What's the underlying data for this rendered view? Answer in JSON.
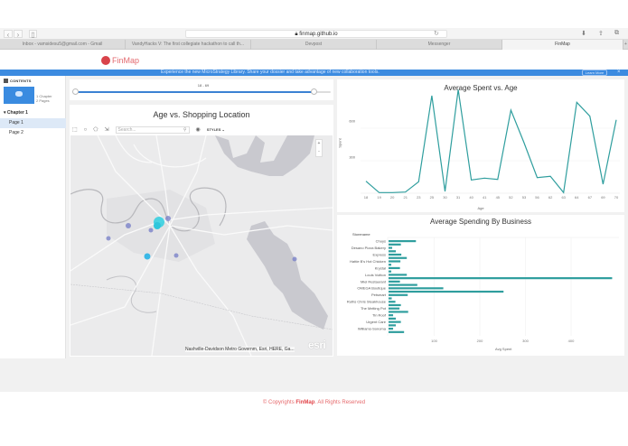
{
  "browser": {
    "url": "finmap.github.io",
    "tabs": [
      {
        "label": "Inbox - vamsidesu5@gmail.com - Gmail",
        "active": false
      },
      {
        "label": "VandyHacks V: The first collegiate hackathon to call th...",
        "active": false
      },
      {
        "label": "Devpost",
        "active": false
      },
      {
        "label": "Messenger",
        "active": false
      },
      {
        "label": "FinMap",
        "active": true
      }
    ],
    "new_tab": "+"
  },
  "site": {
    "logo": "FinMap",
    "brand_color": "#d9434a"
  },
  "banner": {
    "text": "Experience the new MicroStrategy Library. Share your dossier and take advantage of new collaboration tools.",
    "button": "Learn More",
    "close": "×"
  },
  "sidebar": {
    "header": "CONTENTS",
    "chapter_count": "1 Chapter",
    "page_count": "2 Pages",
    "chapter": "Chapter 1",
    "pages": [
      {
        "label": "Page 1",
        "selected": true
      },
      {
        "label": "Page 2",
        "selected": false
      }
    ]
  },
  "filter": {
    "label": "18 - 69",
    "min": 18,
    "max": 69
  },
  "map": {
    "title": "Age vs. Shopping Location",
    "search_placeholder": "Search...",
    "styles_label": "STYLES",
    "zoom_in": "+",
    "zoom_out": "-",
    "attribution": "Nashville-Davidson Metro Governm, Esri, HERE, Ga...",
    "esri_logo": "esri"
  },
  "chart_data": [
    {
      "type": "line",
      "title": "Average Spent vs. Age",
      "xlabel": "Age",
      "ylabel": "Spent",
      "categories": [
        "18",
        "19",
        "20",
        "21",
        "23",
        "25",
        "30",
        "31",
        "40",
        "41",
        "45",
        "52",
        "53",
        "56",
        "62",
        "63",
        "64",
        "67",
        "69",
        "70"
      ],
      "values": [
        100,
        5,
        5,
        10,
        95,
        810,
        15,
        860,
        110,
        125,
        115,
        690,
        420,
        130,
        140,
        5,
        755,
        640,
        75,
        610
      ],
      "yticks": [
        300,
        600
      ],
      "ylim": [
        0,
        870
      ],
      "color": "#2f9e9e",
      "grid": true
    },
    {
      "type": "bar",
      "orientation": "horizontal",
      "title": "Average Spending By Business",
      "xlabel": "Avg Spent",
      "ylabel": "Storename",
      "labels_shown": [
        "Chuys",
        "Desano Pizza Bakery",
        "Express",
        "Hattie B's Hot Chicken",
        "Krystal",
        "Louis Vuitton",
        "Miel Restaurant",
        "OMEGA Boutique",
        "Petsmart",
        "Ruths Chris Steakhouse",
        "The Melting Pot",
        "Tin Roof",
        "Urgent Care",
        "Williams-Sonoma"
      ],
      "values": [
        60,
        27,
        8,
        16,
        28,
        40,
        26,
        6,
        25,
        6,
        40,
        490,
        25,
        63,
        120,
        252,
        42,
        7,
        15,
        27,
        24,
        43,
        10,
        16,
        27,
        16,
        10,
        34
      ],
      "xticks": [
        100,
        200,
        300,
        400
      ],
      "xlim": [
        0,
        500
      ],
      "color": "#2f9e9e"
    }
  ],
  "footer": {
    "prefix": "© Copyrights ",
    "brand": "FinMap",
    "suffix": ". All Rights Reserved"
  }
}
